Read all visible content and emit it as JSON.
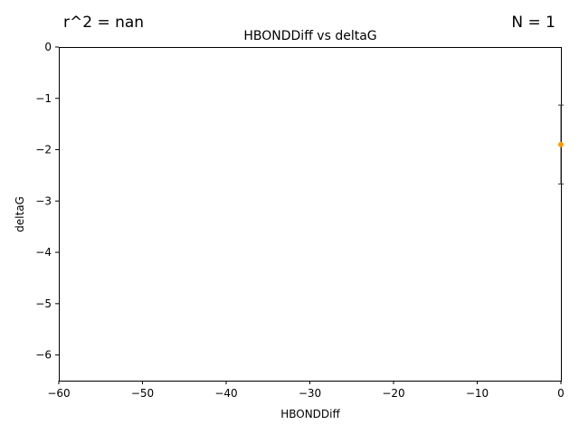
{
  "header": {
    "r2_text": "r^2 = nan",
    "n_text": "N = 1"
  },
  "chart_data": {
    "type": "scatter",
    "title": "HBONDDiff vs deltaG",
    "xlabel": "HBONDDiff",
    "ylabel": "deltaG",
    "xlim": [
      -60,
      0
    ],
    "ylim": [
      -6.5,
      0
    ],
    "xticks": [
      -60,
      -50,
      -40,
      -30,
      -20,
      -10,
      0
    ],
    "yticks": [
      0,
      -1,
      -2,
      -3,
      -4,
      -5,
      -6
    ],
    "grid": false,
    "series": [
      {
        "color": "#ff9900",
        "points": [
          {
            "x": 0,
            "y": -1.9,
            "yerr": 0.77
          }
        ]
      }
    ]
  }
}
